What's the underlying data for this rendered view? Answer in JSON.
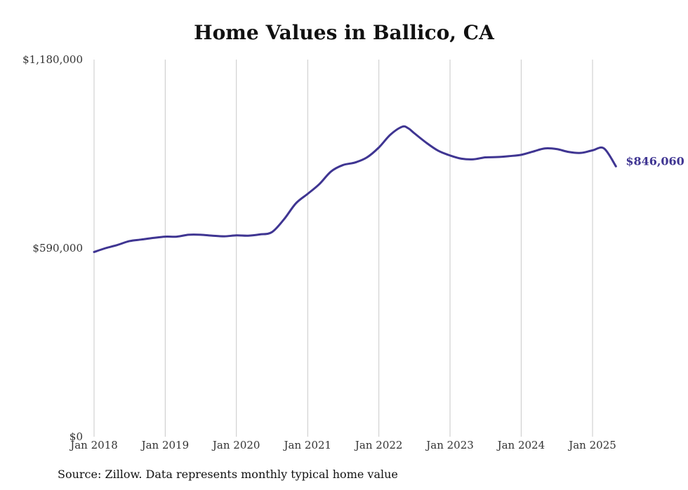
{
  "chart_data": {
    "type": "line",
    "title": "Home Values in Ballico, CA",
    "source_note": "Source: Zillow. Data represents monthly typical home value",
    "xlabel": "",
    "ylabel": "",
    "ylim": [
      0,
      1180000
    ],
    "y_ticks": [
      0,
      590000,
      1180000
    ],
    "y_tick_labels": [
      "$0",
      "$590,000",
      "$1,180,000"
    ],
    "x_ticks": [
      "2018-01",
      "2019-01",
      "2020-01",
      "2021-01",
      "2022-01",
      "2023-01",
      "2024-01",
      "2025-01"
    ],
    "x_tick_labels": [
      "Jan 2018",
      "Jan 2019",
      "Jan 2020",
      "Jan 2021",
      "Jan 2022",
      "Jan 2023",
      "Jan 2024",
      "Jan 2025"
    ],
    "grid": "vertical lines at x ticks",
    "line_color": "#3f3592",
    "end_value_label": "$846,060",
    "series": [
      {
        "x": [
          "2018-01",
          "2018-03",
          "2018-05",
          "2018-07",
          "2018-09",
          "2018-11",
          "2019-01",
          "2019-03",
          "2019-05",
          "2019-07",
          "2019-09",
          "2019-11",
          "2020-01",
          "2020-03",
          "2020-05",
          "2020-07",
          "2020-09",
          "2020-11",
          "2021-01",
          "2021-03",
          "2021-05",
          "2021-07",
          "2021-09",
          "2021-11",
          "2022-01",
          "2022-03",
          "2022-05",
          "2022-06",
          "2022-07",
          "2022-09",
          "2022-11",
          "2023-01",
          "2023-03",
          "2023-05",
          "2023-07",
          "2023-09",
          "2023-11",
          "2024-01",
          "2024-03",
          "2024-05",
          "2024-07",
          "2024-09",
          "2024-11",
          "2025-01",
          "2025-03",
          "2025-05"
        ],
        "values": [
          578000,
          590000,
          600000,
          612000,
          617000,
          622000,
          626000,
          626000,
          632000,
          632000,
          629000,
          627000,
          630000,
          629000,
          633000,
          640000,
          680000,
          730000,
          760000,
          790000,
          830000,
          850000,
          858000,
          874000,
          905000,
          945000,
          970000,
          965000,
          950000,
          920000,
          895000,
          880000,
          870000,
          868000,
          874000,
          875000,
          878000,
          882000,
          892000,
          902000,
          900000,
          891000,
          888000,
          896000,
          902000,
          846060
        ]
      }
    ]
  }
}
